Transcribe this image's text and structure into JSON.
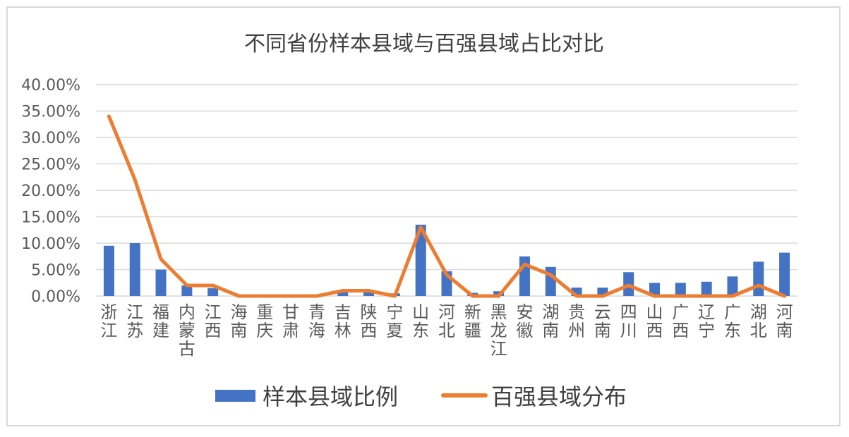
{
  "chart_data": {
    "type": "bar",
    "title": "不同省份样本县域与百强县域占比对比",
    "categories": [
      "浙江",
      "江苏",
      "福建",
      "内蒙古",
      "江西",
      "海南",
      "重庆",
      "甘肃",
      "青海",
      "吉林",
      "陕西",
      "宁夏",
      "山东",
      "河北",
      "新疆",
      "黑龙江",
      "安徽",
      "湖南",
      "贵州",
      "云南",
      "四川",
      "山西",
      "广西",
      "辽宁",
      "广东",
      "湖北",
      "河南"
    ],
    "series": [
      {
        "name": "样本县域比例",
        "type": "bar",
        "color": "#4472c4",
        "values": [
          9.5,
          10.0,
          5.0,
          2.0,
          1.5,
          0.0,
          0.0,
          0.0,
          0.0,
          1.0,
          1.2,
          0.5,
          13.5,
          4.7,
          0.6,
          0.9,
          7.5,
          5.5,
          1.6,
          1.6,
          4.5,
          2.5,
          2.5,
          2.7,
          3.7,
          6.5,
          8.2
        ]
      },
      {
        "name": "百强县域分布",
        "type": "line",
        "color": "#ed7d31",
        "values": [
          34.0,
          22.0,
          7.0,
          2.0,
          2.0,
          0.0,
          0.0,
          0.0,
          0.0,
          1.0,
          1.0,
          0.0,
          13.0,
          4.0,
          0.0,
          0.0,
          6.0,
          4.0,
          0.0,
          0.0,
          2.0,
          0.0,
          0.0,
          0.0,
          0.0,
          2.0,
          0.0
        ]
      }
    ],
    "ylim": [
      0,
      40
    ],
    "yticks": [
      "0.00%",
      "5.00%",
      "10.00%",
      "15.00%",
      "20.00%",
      "25.00%",
      "30.00%",
      "35.00%",
      "40.00%"
    ],
    "grid": true,
    "legend": "bottom"
  }
}
